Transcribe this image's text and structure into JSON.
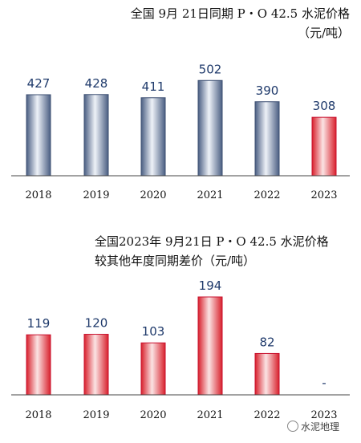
{
  "chart_data": [
    {
      "type": "bar",
      "title": "全国 9月 21日同期 P・O 42.5 水泥价格",
      "subtitle": "（元/吨）",
      "categories": [
        "2018",
        "2019",
        "2020",
        "2021",
        "2022",
        "2023"
      ],
      "values": [
        427,
        428,
        411,
        502,
        390,
        308
      ],
      "highlight_category": "2023",
      "colors": {
        "bar": "#a9b6cc",
        "highlight": "#e0444c"
      }
    },
    {
      "type": "bar",
      "title": "全国2023年 9月21日 P・O 42.5 水泥价格",
      "subtitle": "较其他年度同期差价（元/吨）",
      "categories": [
        "2018",
        "2019",
        "2020",
        "2021",
        "2022",
        "2023"
      ],
      "values": [
        119,
        120,
        103,
        194,
        82,
        null
      ],
      "value_labels": [
        "119",
        "120",
        "103",
        "194",
        "82",
        "-"
      ],
      "colors": {
        "bar": "#e0444c"
      }
    }
  ],
  "watermark": "水泥地理"
}
